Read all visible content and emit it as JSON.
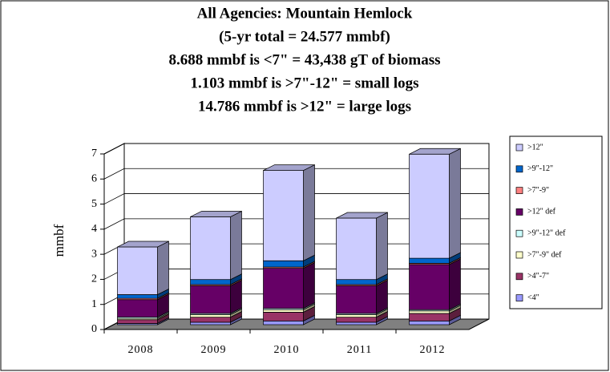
{
  "chart_data": {
    "type": "bar3d_stacked",
    "title": [
      "All Agencies: Mountain Hemlock",
      "(5-yr total = 24.577 mmbf)",
      "8.688 mmbf is <7\" = 43,438 gT of biomass",
      "1.103 mmbf is >7\"-12\" = small logs",
      "14.786 mmbf is >12\" = large logs"
    ],
    "y_label": "mmbf",
    "categories": [
      "2008",
      "2009",
      "2010",
      "2011",
      "2012"
    ],
    "series": [
      {
        "name": "<4\"",
        "color": "#9999ff",
        "values": [
          0.05,
          0.1,
          0.15,
          0.1,
          0.15
        ]
      },
      {
        "name": ">4\"-7\"",
        "color": "#993366",
        "values": [
          0.15,
          0.2,
          0.35,
          0.2,
          0.3
        ]
      },
      {
        "name": ">7\"-9\" def",
        "color": "#ffffcc",
        "values": [
          0.05,
          0.1,
          0.1,
          0.1,
          0.1
        ]
      },
      {
        "name": ">9\"-12\" def",
        "color": "#ccffff",
        "values": [
          0.05,
          0.05,
          0.05,
          0.05,
          0.05
        ]
      },
      {
        "name": ">12\" def",
        "color": "#660066",
        "values": [
          0.7,
          1.1,
          1.6,
          1.1,
          1.8
        ]
      },
      {
        "name": ">7\"-9\"",
        "color": "#ff8080",
        "values": [
          0.05,
          0.05,
          0.05,
          0.05,
          0.05
        ]
      },
      {
        "name": ">9\"-12\"",
        "color": "#0066cc",
        "values": [
          0.15,
          0.2,
          0.25,
          0.2,
          0.2
        ]
      },
      {
        "name": ">12\"",
        "color": "#ccccff",
        "values": [
          1.9,
          2.5,
          3.6,
          2.45,
          4.15
        ]
      }
    ],
    "ylim": [
      0,
      7
    ],
    "yticks": [
      0,
      1,
      2,
      3,
      4,
      5,
      6,
      7
    ],
    "grid": true,
    "legend": "right"
  }
}
